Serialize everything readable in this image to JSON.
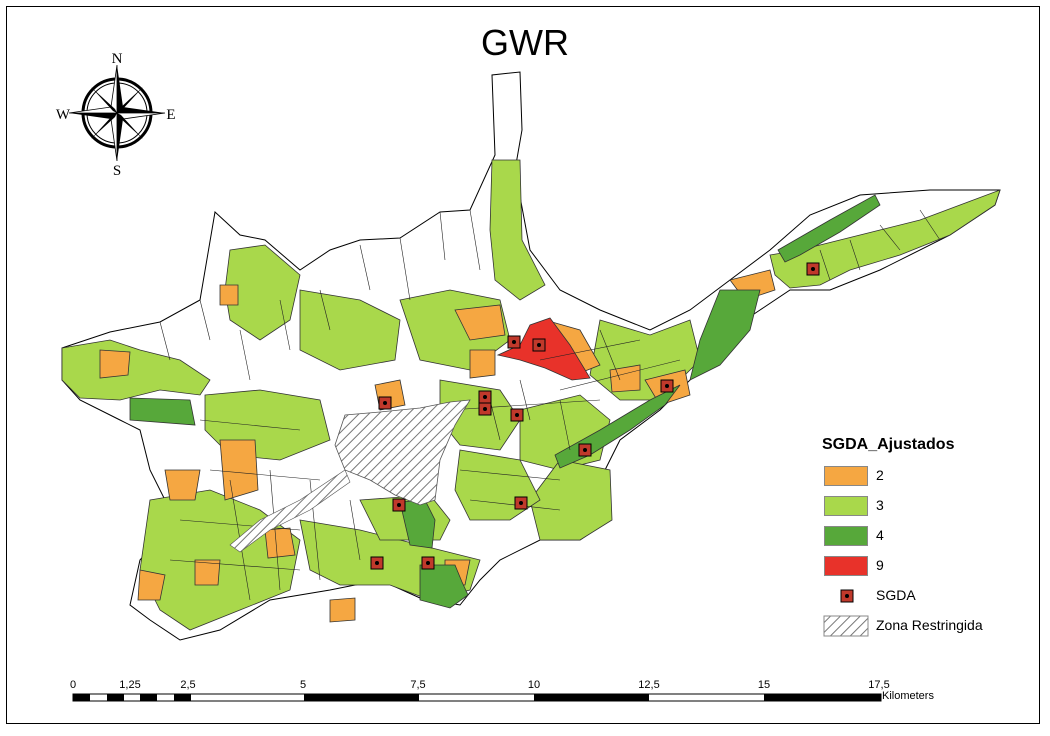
{
  "title": "GWR",
  "compass": {
    "n": "N",
    "s": "S",
    "e": "E",
    "w": "W"
  },
  "legend": {
    "title": "SGDA_Ajustados",
    "classes": [
      {
        "label": "2",
        "color": "#f5a742"
      },
      {
        "label": "3",
        "color": "#a9d84b"
      },
      {
        "label": "4",
        "color": "#57a83a"
      },
      {
        "label": "9",
        "color": "#e8322a"
      }
    ],
    "point_label": "SGDA",
    "hatch_label": "Zona Restringida"
  },
  "scale": {
    "ticks": [
      "0",
      "1,25",
      "2,5",
      "5",
      "7,5",
      "10",
      "12,5",
      "15",
      "17,5"
    ],
    "unit": "Kilometers"
  }
}
